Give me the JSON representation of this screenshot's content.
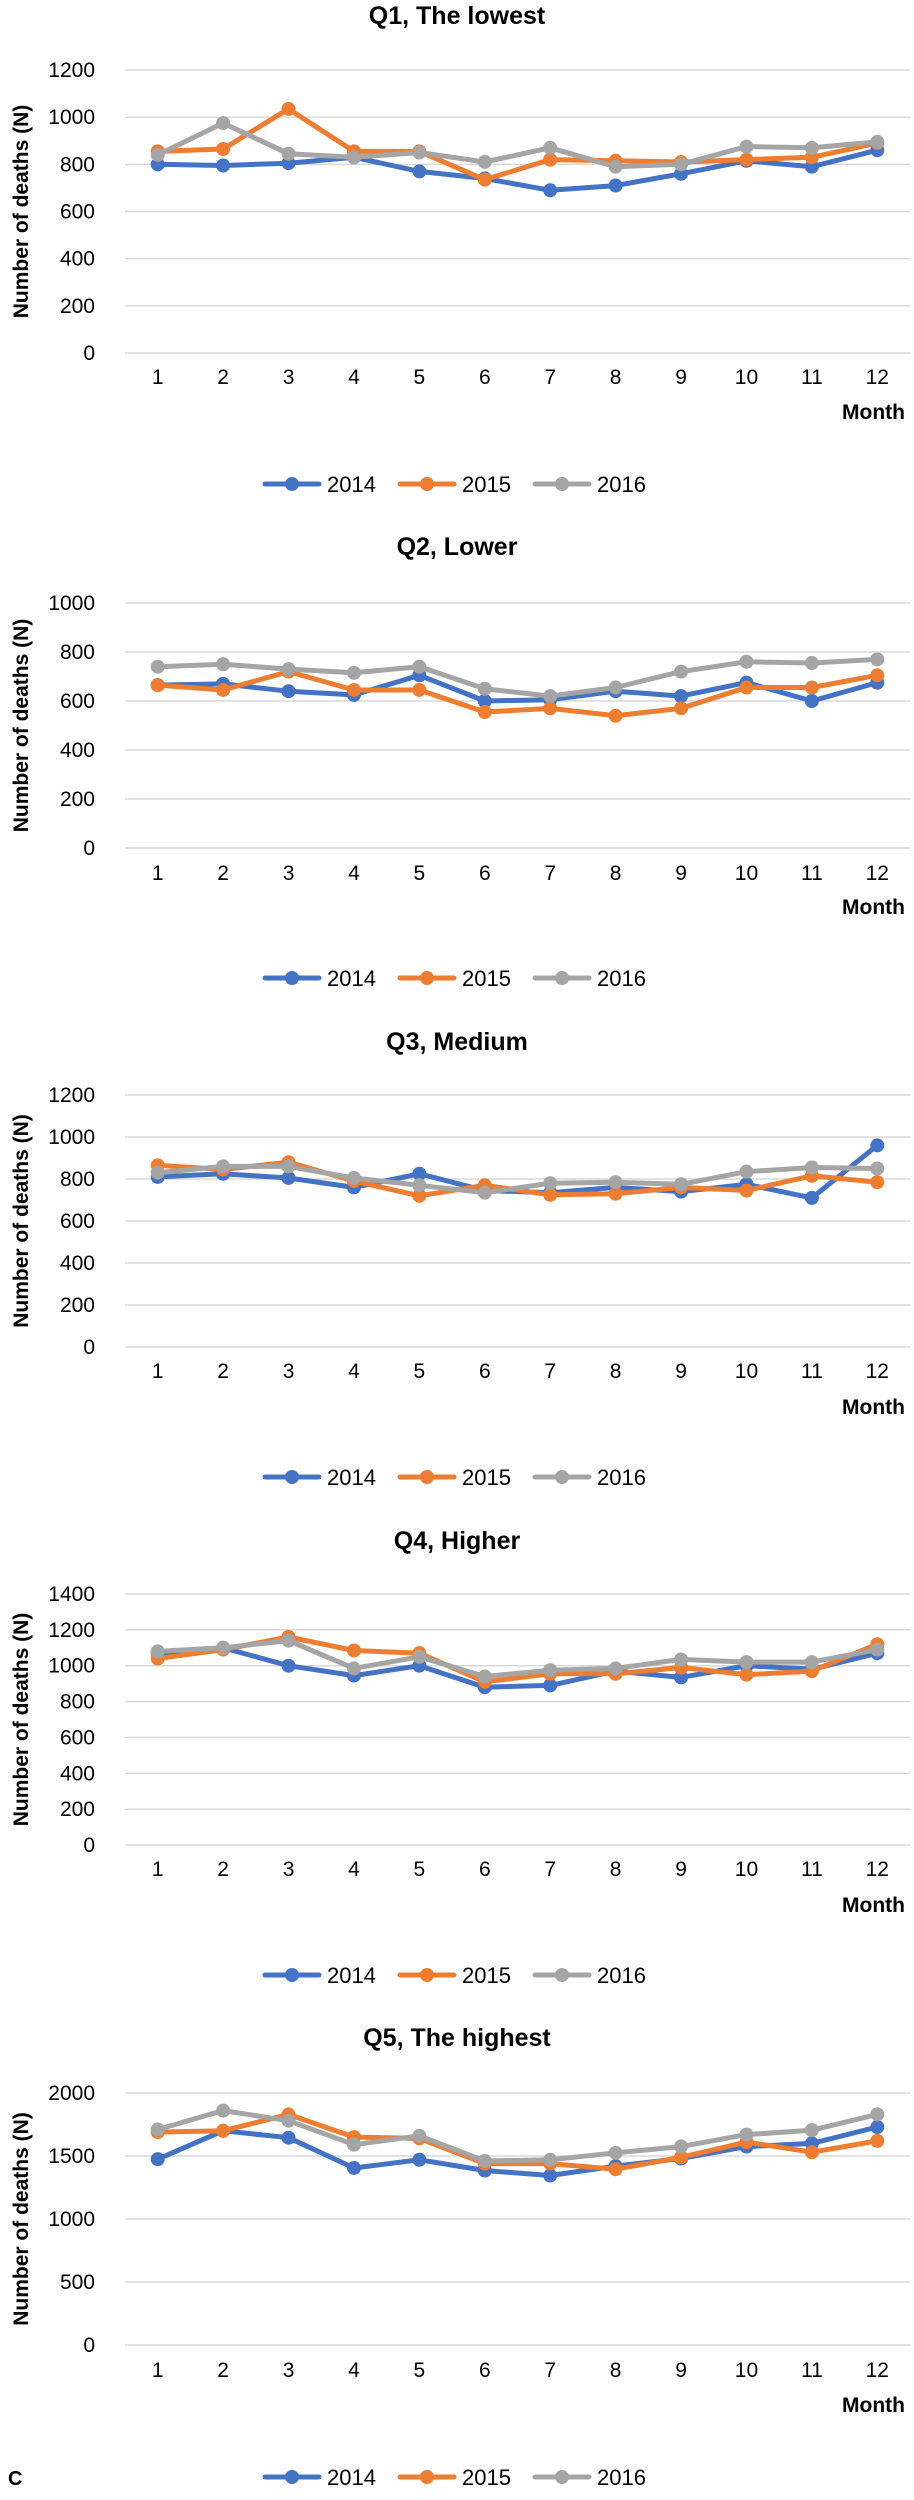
{
  "panel_label": "C",
  "colors": {
    "2014": "#4472C4",
    "2015": "#ED7D31",
    "2016": "#A5A5A5",
    "grid": "#D9D9D9"
  },
  "chart_data": [
    {
      "type": "line",
      "title": "Q1, The lowest",
      "xlabel": "Month",
      "ylabel": "Number of deaths (N)",
      "ylim": [
        0,
        1200
      ],
      "ystep": 200,
      "grid": true,
      "legend": "bottom",
      "x": [
        1,
        2,
        3,
        4,
        5,
        6,
        7,
        8,
        9,
        10,
        11,
        12
      ],
      "series": [
        {
          "name": "2014",
          "values": [
            800,
            795,
            805,
            830,
            770,
            740,
            690,
            710,
            760,
            815,
            790,
            860
          ]
        },
        {
          "name": "2015",
          "values": [
            855,
            865,
            1035,
            855,
            855,
            735,
            820,
            815,
            810,
            820,
            830,
            890
          ]
        },
        {
          "name": "2016",
          "values": [
            840,
            975,
            845,
            830,
            850,
            810,
            870,
            790,
            800,
            875,
            870,
            895
          ]
        }
      ]
    },
    {
      "type": "line",
      "title": "Q2, Lower",
      "xlabel": "Month",
      "ylabel": "Number of deaths (N)",
      "ylim": [
        0,
        1000
      ],
      "ystep": 200,
      "grid": true,
      "legend": "bottom",
      "x": [
        1,
        2,
        3,
        4,
        5,
        6,
        7,
        8,
        9,
        10,
        11,
        12
      ],
      "series": [
        {
          "name": "2014",
          "values": [
            665,
            670,
            640,
            625,
            705,
            600,
            605,
            640,
            620,
            675,
            600,
            675
          ]
        },
        {
          "name": "2015",
          "values": [
            665,
            645,
            720,
            645,
            645,
            555,
            570,
            540,
            570,
            655,
            655,
            705
          ]
        },
        {
          "name": "2016",
          "values": [
            740,
            750,
            730,
            715,
            740,
            650,
            620,
            655,
            720,
            760,
            755,
            770
          ]
        }
      ]
    },
    {
      "type": "line",
      "title": "Q3, Medium",
      "xlabel": "Month",
      "ylabel": "Number of deaths (N)",
      "ylim": [
        0,
        1200
      ],
      "ystep": 200,
      "grid": true,
      "legend": "bottom",
      "x": [
        1,
        2,
        3,
        4,
        5,
        6,
        7,
        8,
        9,
        10,
        11,
        12
      ],
      "series": [
        {
          "name": "2014",
          "values": [
            810,
            825,
            805,
            760,
            825,
            745,
            735,
            760,
            740,
            775,
            710,
            960
          ]
        },
        {
          "name": "2015",
          "values": [
            865,
            845,
            880,
            790,
            720,
            770,
            725,
            730,
            760,
            745,
            815,
            785
          ]
        },
        {
          "name": "2016",
          "values": [
            830,
            860,
            860,
            805,
            770,
            735,
            780,
            785,
            775,
            835,
            855,
            850
          ]
        }
      ]
    },
    {
      "type": "line",
      "title": "Q4, Higher",
      "xlabel": "Month",
      "ylabel": "Number of deaths (N)",
      "ylim": [
        0,
        1400
      ],
      "ystep": 200,
      "grid": true,
      "legend": "bottom",
      "x": [
        1,
        2,
        3,
        4,
        5,
        6,
        7,
        8,
        9,
        10,
        11,
        12
      ],
      "series": [
        {
          "name": "2014",
          "values": [
            1070,
            1100,
            1000,
            945,
            1000,
            880,
            890,
            970,
            935,
            1000,
            980,
            1070
          ]
        },
        {
          "name": "2015",
          "values": [
            1040,
            1090,
            1160,
            1085,
            1070,
            910,
            955,
            955,
            990,
            950,
            970,
            1120
          ]
        },
        {
          "name": "2016",
          "values": [
            1080,
            1100,
            1140,
            985,
            1050,
            940,
            975,
            985,
            1035,
            1020,
            1020,
            1090
          ]
        }
      ]
    },
    {
      "type": "line",
      "title": "Q5, The highest",
      "xlabel": "Month",
      "ylabel": "Number of deaths (N)",
      "ylim": [
        0,
        2000
      ],
      "ystep": 500,
      "grid": true,
      "legend": "bottom",
      "x": [
        1,
        2,
        3,
        4,
        5,
        6,
        7,
        8,
        9,
        10,
        11,
        12
      ],
      "series": [
        {
          "name": "2014",
          "values": [
            1475,
            1700,
            1645,
            1405,
            1470,
            1385,
            1345,
            1420,
            1480,
            1575,
            1600,
            1730
          ]
        },
        {
          "name": "2015",
          "values": [
            1690,
            1700,
            1830,
            1650,
            1640,
            1440,
            1440,
            1395,
            1490,
            1610,
            1530,
            1620
          ]
        },
        {
          "name": "2016",
          "values": [
            1710,
            1860,
            1780,
            1590,
            1660,
            1460,
            1470,
            1525,
            1575,
            1670,
            1705,
            1830
          ]
        }
      ]
    }
  ]
}
